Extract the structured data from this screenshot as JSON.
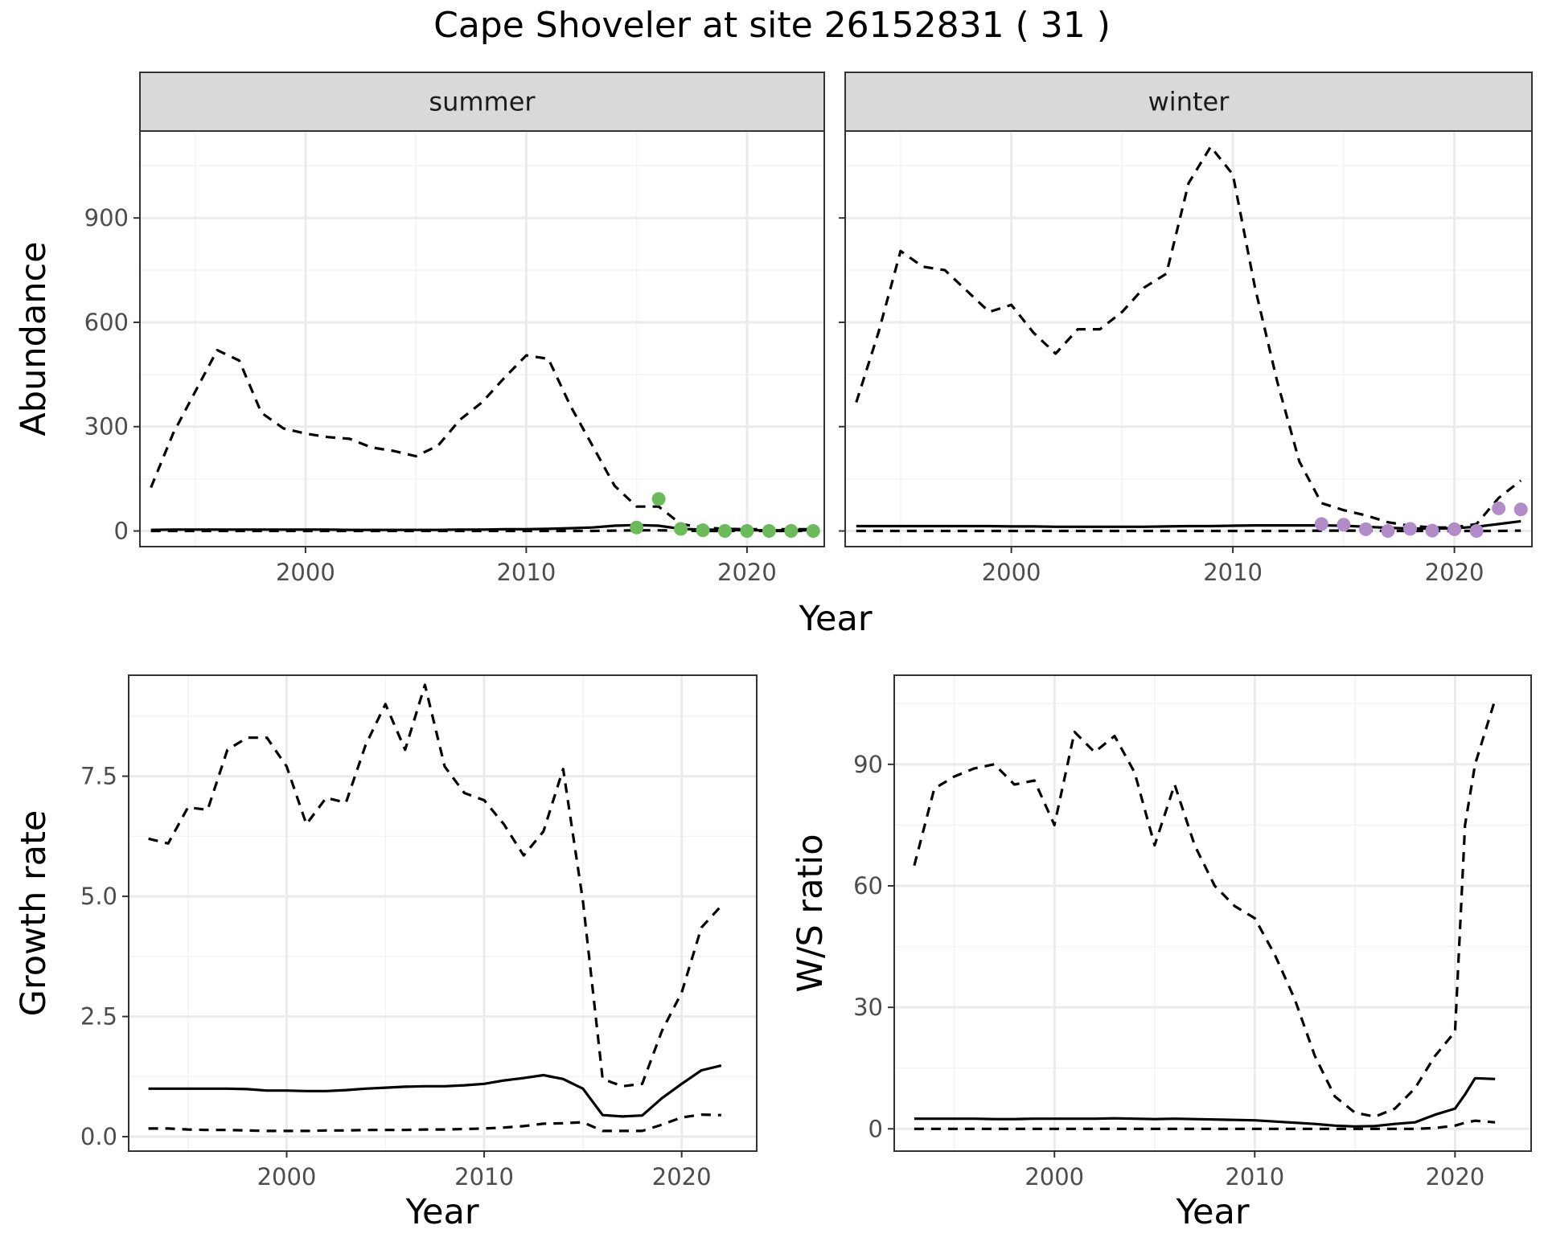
{
  "title": "Cape Shoveler at site 26152831 ( 31 )",
  "colors": {
    "summer_points": "#6bbb5a",
    "winter_points": "#b18cc8",
    "line": "#000000",
    "grid_major": "#ebebeb",
    "grid_minor": "#f4f4f4",
    "strip_bg": "#d9d9d9",
    "panel_border": "#333333"
  },
  "chart_data": [
    {
      "type": "line",
      "facet": "summer",
      "xlabel": "Year",
      "ylabel": "Abundance",
      "xlim": [
        1992.5,
        2023.5
      ],
      "ylim": [
        -45,
        1150
      ],
      "xticks": [
        2000,
        2010,
        2020
      ],
      "yticks": [
        0,
        300,
        600,
        900
      ],
      "x": [
        1993,
        1994,
        1995,
        1996,
        1997,
        1998,
        1999,
        2000,
        2001,
        2002,
        2003,
        2004,
        2005,
        2006,
        2007,
        2008,
        2009,
        2010,
        2011,
        2012,
        2013,
        2014,
        2015,
        2016,
        2017,
        2018,
        2019,
        2020,
        2021,
        2022,
        2023
      ],
      "series": [
        {
          "role": "upper",
          "style": "dashed",
          "values": [
            125,
            280,
            400,
            520,
            490,
            340,
            295,
            280,
            270,
            265,
            240,
            230,
            215,
            245,
            320,
            370,
            440,
            505,
            495,
            360,
            245,
            130,
            70,
            70,
            20,
            10,
            6,
            5,
            5,
            5,
            5
          ]
        },
        {
          "role": "mean",
          "style": "solid",
          "values": [
            3,
            4,
            4,
            4,
            4,
            4,
            4,
            4,
            4,
            3,
            3,
            3,
            3,
            3,
            4,
            4,
            5,
            5,
            6,
            8,
            10,
            15,
            17,
            15,
            6,
            4,
            3,
            2,
            2,
            2,
            2
          ]
        },
        {
          "role": "lower",
          "style": "dashed",
          "values": [
            0,
            0,
            0,
            0,
            0,
            0,
            0,
            0,
            0,
            0,
            0,
            0,
            0,
            0,
            0,
            0,
            0,
            0,
            0,
            0,
            0,
            1,
            2,
            2,
            1,
            0,
            0,
            0,
            0,
            0,
            0
          ]
        }
      ],
      "points": {
        "x": [
          2015,
          2016,
          2017,
          2018,
          2019,
          2020,
          2021,
          2022,
          2023
        ],
        "y": [
          10,
          92,
          6,
          2,
          0,
          0,
          0,
          0,
          0
        ]
      }
    },
    {
      "type": "line",
      "facet": "winter",
      "xlabel": "Year",
      "ylabel": "",
      "xlim": [
        1992.5,
        2023.5
      ],
      "ylim": [
        -45,
        1150
      ],
      "xticks": [
        2000,
        2010,
        2020
      ],
      "yticks": [
        0,
        300,
        600,
        900
      ],
      "x": [
        1993,
        1994,
        1995,
        1996,
        1997,
        1998,
        1999,
        2000,
        2001,
        2002,
        2003,
        2004,
        2005,
        2006,
        2007,
        2008,
        2009,
        2010,
        2011,
        2012,
        2013,
        2014,
        2015,
        2016,
        2017,
        2018,
        2019,
        2020,
        2021,
        2022,
        2023
      ],
      "series": [
        {
          "role": "upper",
          "style": "dashed",
          "values": [
            370,
            570,
            805,
            760,
            750,
            690,
            630,
            650,
            570,
            510,
            580,
            580,
            630,
            700,
            740,
            1000,
            1105,
            1025,
            700,
            430,
            200,
            80,
            60,
            45,
            25,
            15,
            10,
            10,
            20,
            95,
            145
          ]
        },
        {
          "role": "mean",
          "style": "solid",
          "values": [
            14,
            14,
            14,
            14,
            14,
            14,
            14,
            13,
            13,
            12,
            12,
            12,
            12,
            12,
            13,
            14,
            14,
            15,
            16,
            16,
            16,
            16,
            15,
            12,
            9,
            7,
            7,
            8,
            12,
            20,
            28
          ]
        },
        {
          "role": "lower",
          "style": "dashed",
          "values": [
            0,
            0,
            0,
            0,
            0,
            0,
            0,
            0,
            0,
            0,
            0,
            0,
            0,
            0,
            0,
            0,
            0,
            0,
            0,
            0,
            0,
            1,
            1,
            1,
            0,
            0,
            0,
            0,
            0,
            0,
            1
          ]
        }
      ],
      "points": {
        "x": [
          2014,
          2015,
          2016,
          2017,
          2018,
          2019,
          2020,
          2021,
          2022,
          2023
        ],
        "y": [
          20,
          18,
          5,
          0,
          6,
          1,
          5,
          0,
          65,
          62
        ]
      }
    },
    {
      "type": "line",
      "facet": "",
      "xlabel": "Year",
      "ylabel": "Growth rate",
      "xlim": [
        1992,
        2023.8
      ],
      "ylim": [
        -0.3,
        9.6
      ],
      "xticks": [
        2000,
        2010,
        2020
      ],
      "yticks": [
        0.0,
        2.5,
        5.0,
        7.5
      ],
      "yticklabels": [
        "0.0",
        "2.5",
        "5.0",
        "7.5"
      ],
      "x": [
        1993,
        1994,
        1995,
        1996,
        1997,
        1998,
        1999,
        2000,
        2001,
        2002,
        2003,
        2004,
        2005,
        2006,
        2007,
        2008,
        2009,
        2010,
        2011,
        2012,
        2013,
        2014,
        2015,
        2016,
        2017,
        2018,
        2019,
        2020,
        2021,
        2022
      ],
      "series": [
        {
          "role": "upper",
          "style": "dashed",
          "values": [
            6.2,
            6.1,
            6.85,
            6.8,
            8.05,
            8.3,
            8.3,
            7.7,
            6.5,
            7.05,
            6.95,
            8.15,
            9.0,
            8.05,
            9.4,
            7.7,
            7.15,
            7.0,
            6.5,
            5.85,
            6.35,
            7.65,
            4.9,
            1.2,
            1.05,
            1.1,
            2.2,
            3.0,
            4.35,
            4.8
          ]
        },
        {
          "role": "mean",
          "style": "solid",
          "values": [
            1.0,
            1.0,
            1.0,
            1.0,
            1.0,
            0.99,
            0.96,
            0.96,
            0.95,
            0.95,
            0.97,
            1.0,
            1.02,
            1.04,
            1.05,
            1.05,
            1.07,
            1.1,
            1.17,
            1.22,
            1.28,
            1.2,
            1.0,
            0.45,
            0.42,
            0.44,
            0.8,
            1.1,
            1.38,
            1.48
          ]
        },
        {
          "role": "lower",
          "style": "dashed",
          "values": [
            0.17,
            0.17,
            0.15,
            0.14,
            0.14,
            0.13,
            0.12,
            0.12,
            0.12,
            0.13,
            0.13,
            0.14,
            0.14,
            0.14,
            0.15,
            0.15,
            0.16,
            0.17,
            0.19,
            0.22,
            0.27,
            0.28,
            0.3,
            0.12,
            0.12,
            0.12,
            0.25,
            0.4,
            0.46,
            0.45
          ]
        }
      ]
    },
    {
      "type": "line",
      "facet": "",
      "xlabel": "Year",
      "ylabel": "W/S ratio",
      "xlim": [
        1992,
        2023.8
      ],
      "ylim": [
        -5.5,
        112
      ],
      "xticks": [
        2000,
        2010,
        2020
      ],
      "yticks": [
        0,
        30,
        60,
        90
      ],
      "x": [
        1993,
        1994,
        1995,
        1996,
        1997,
        1998,
        1999,
        2000,
        2001,
        2002,
        2003,
        2004,
        2005,
        2006,
        2007,
        2008,
        2009,
        2010,
        2011,
        2012,
        2013,
        2014,
        2015,
        2016,
        2017,
        2018,
        2019,
        2020,
        2020.5,
        2021,
        2022
      ],
      "series": [
        {
          "role": "upper",
          "style": "dashed",
          "values": [
            65,
            84,
            87,
            89,
            90,
            85,
            86,
            75,
            98,
            93,
            97,
            88,
            70,
            85,
            70,
            60,
            55,
            52,
            43,
            32,
            18,
            8,
            4,
            3,
            5,
            10,
            18,
            24,
            75,
            90,
            106
          ]
        },
        {
          "role": "mean",
          "style": "solid",
          "values": [
            2.5,
            2.5,
            2.5,
            2.5,
            2.4,
            2.4,
            2.5,
            2.5,
            2.5,
            2.5,
            2.6,
            2.5,
            2.4,
            2.5,
            2.4,
            2.3,
            2.2,
            2.1,
            1.8,
            1.5,
            1.2,
            0.8,
            0.6,
            0.7,
            1.2,
            1.6,
            3.5,
            5.0,
            8.5,
            12.5,
            12.3
          ]
        },
        {
          "role": "lower",
          "style": "dashed",
          "values": [
            0,
            0,
            0,
            0,
            0,
            0,
            0,
            0,
            0,
            0,
            0,
            0,
            0,
            0,
            0,
            0,
            0,
            0,
            0,
            0,
            0,
            0,
            0,
            0,
            0,
            0,
            0.2,
            0.8,
            1.5,
            2.0,
            1.6
          ]
        }
      ]
    }
  ]
}
